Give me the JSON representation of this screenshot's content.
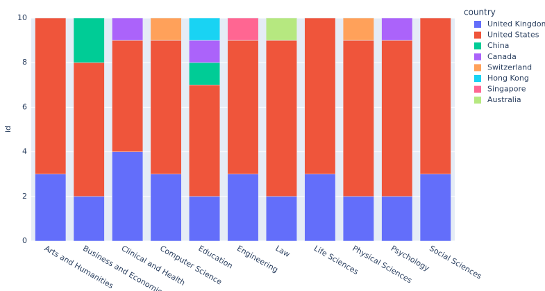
{
  "chart_data": {
    "type": "stacked_bar",
    "y_label": "id",
    "legend_title": "country",
    "categories": [
      "Arts and Humanities",
      "Business and Economics",
      "Clinical and Health",
      "Computer Science",
      "Education",
      "Engineering",
      "Law",
      "Life Sciences",
      "Physical Sciences",
      "Psychology",
      "Social Sciences"
    ],
    "series": [
      {
        "name": "United Kingdom",
        "color": "#636efa",
        "values": [
          3,
          2,
          4,
          3,
          2,
          3,
          2,
          3,
          2,
          2,
          3
        ]
      },
      {
        "name": "United States",
        "color": "#ef553b",
        "values": [
          7,
          6,
          5,
          6,
          5,
          6,
          7,
          7,
          7,
          7,
          7
        ]
      },
      {
        "name": "China",
        "color": "#00cc96",
        "values": [
          null,
          2,
          null,
          null,
          1,
          null,
          null,
          null,
          null,
          null,
          null
        ]
      },
      {
        "name": "Canada",
        "color": "#ab63fa",
        "values": [
          null,
          null,
          1,
          null,
          1,
          null,
          null,
          null,
          null,
          1,
          null
        ]
      },
      {
        "name": "Switzerland",
        "color": "#ffa15a",
        "values": [
          null,
          null,
          null,
          1,
          null,
          null,
          null,
          null,
          1,
          null,
          null
        ]
      },
      {
        "name": "Hong Kong",
        "color": "#19d3f3",
        "values": [
          null,
          null,
          null,
          null,
          1,
          null,
          null,
          null,
          null,
          null,
          null
        ]
      },
      {
        "name": "Singapore",
        "color": "#ff6692",
        "values": [
          null,
          null,
          null,
          null,
          null,
          1,
          null,
          null,
          null,
          null,
          null
        ]
      },
      {
        "name": "Australia",
        "color": "#b6e880",
        "values": [
          null,
          null,
          null,
          null,
          null,
          null,
          1,
          null,
          null,
          null,
          null
        ]
      }
    ],
    "ylim": [
      0,
      10
    ],
    "yticks": [
      0,
      2,
      4,
      6,
      8,
      10
    ],
    "grid": true
  }
}
